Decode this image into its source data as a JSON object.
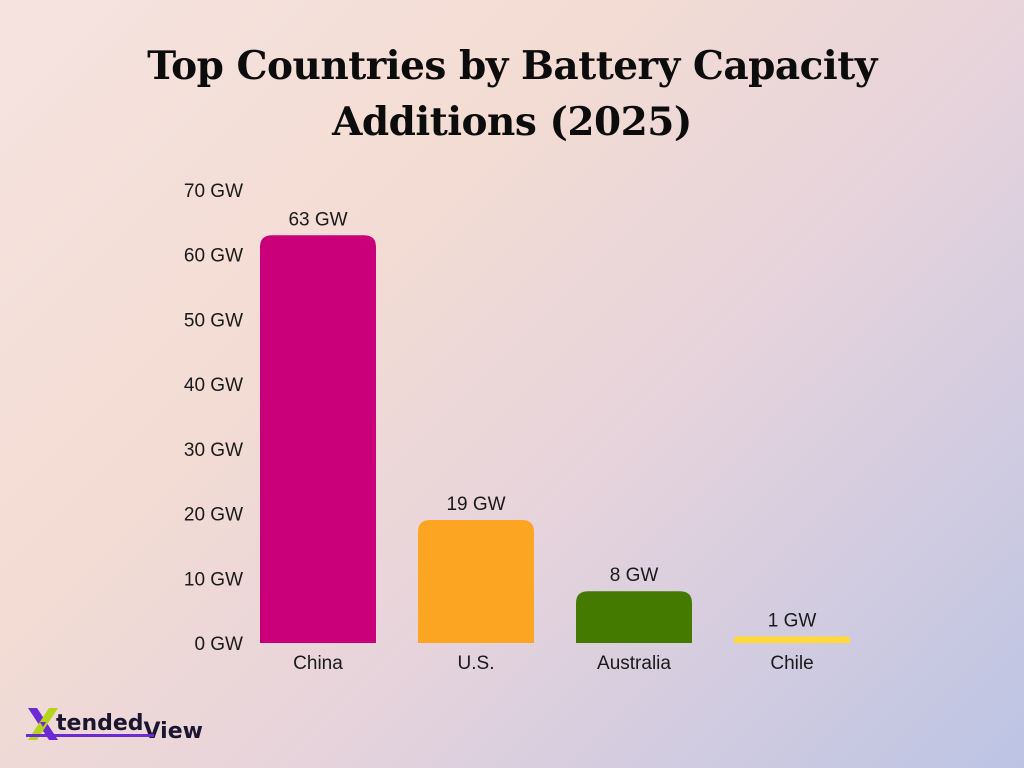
{
  "title_lines": [
    "Top Countries by Battery Capacity",
    "Additions (2025)"
  ],
  "chart_data": {
    "type": "bar",
    "title": "Top Countries by Battery Capacity Additions (2025)",
    "categories": [
      "China",
      "U.S.",
      "Australia",
      "Chile"
    ],
    "values": [
      63,
      19,
      8,
      1
    ],
    "value_labels": [
      "63 GW",
      "19 GW",
      "8 GW",
      "1 GW"
    ],
    "colors": [
      "#c9007a",
      "#fba523",
      "#457a00",
      "#ffd83a"
    ],
    "y_ticks": [
      0,
      10,
      20,
      30,
      40,
      50,
      60,
      70
    ],
    "y_tick_labels": [
      "0 GW",
      "10 GW",
      "20 GW",
      "30 GW",
      "40 GW",
      "50 GW",
      "60 GW",
      "70 GW"
    ],
    "ylim": [
      0,
      70
    ],
    "grid": false,
    "xlabel": "",
    "ylabel": ""
  },
  "logo": {
    "part1": "tended",
    "part2": "View"
  }
}
